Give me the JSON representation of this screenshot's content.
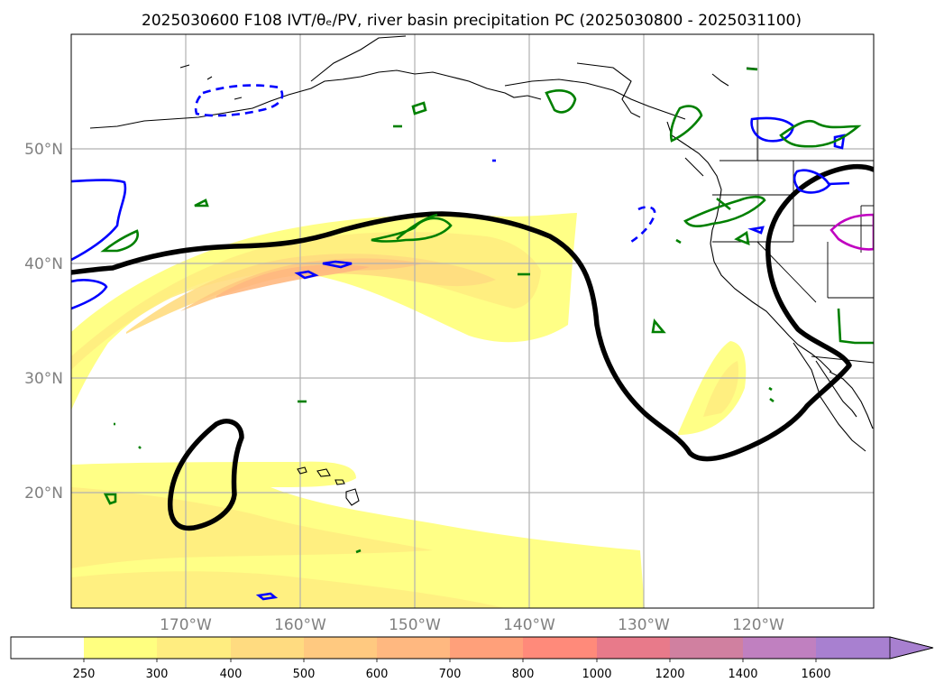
{
  "title": "2025030600 F108 IVT/θₑ/PV, river basin precipitation PC (2025030800 - 2025031100)",
  "map": {
    "projection": "PlateCarree",
    "lon_range": [
      180,
      -110
    ],
    "lat_range": [
      10,
      60
    ],
    "lat_ticks": [
      "20°N",
      "30°N",
      "40°N",
      "50°N"
    ],
    "lon_ticks": [
      "170°W",
      "160°W",
      "150°W",
      "140°W",
      "130°W",
      "120°W"
    ],
    "grid": true
  },
  "fields": {
    "ivt_shading": "Integrated vapor transport (kg m-1 s-1), filled yellow-orange",
    "theta_e_contour": "Thick black contour",
    "pv_contours": {
      "positive_color": "#0000ff",
      "negative_style": "dashed"
    },
    "river_basin_precip_pc": {
      "colors": [
        "#008000",
        "#c000c0"
      ]
    }
  },
  "colorbar": {
    "levels": [
      "250",
      "300",
      "400",
      "500",
      "600",
      "700",
      "800",
      "1000",
      "1200",
      "1400",
      "1600"
    ],
    "colors": [
      "#ffffff",
      "#ffff80",
      "#ffed80",
      "#ffdb80",
      "#ffc980",
      "#ffb880",
      "#ffa07a",
      "#ff8a7a",
      "#e87a8a",
      "#d080a0",
      "#c080c0",
      "#a880d0"
    ],
    "extend": "max"
  }
}
